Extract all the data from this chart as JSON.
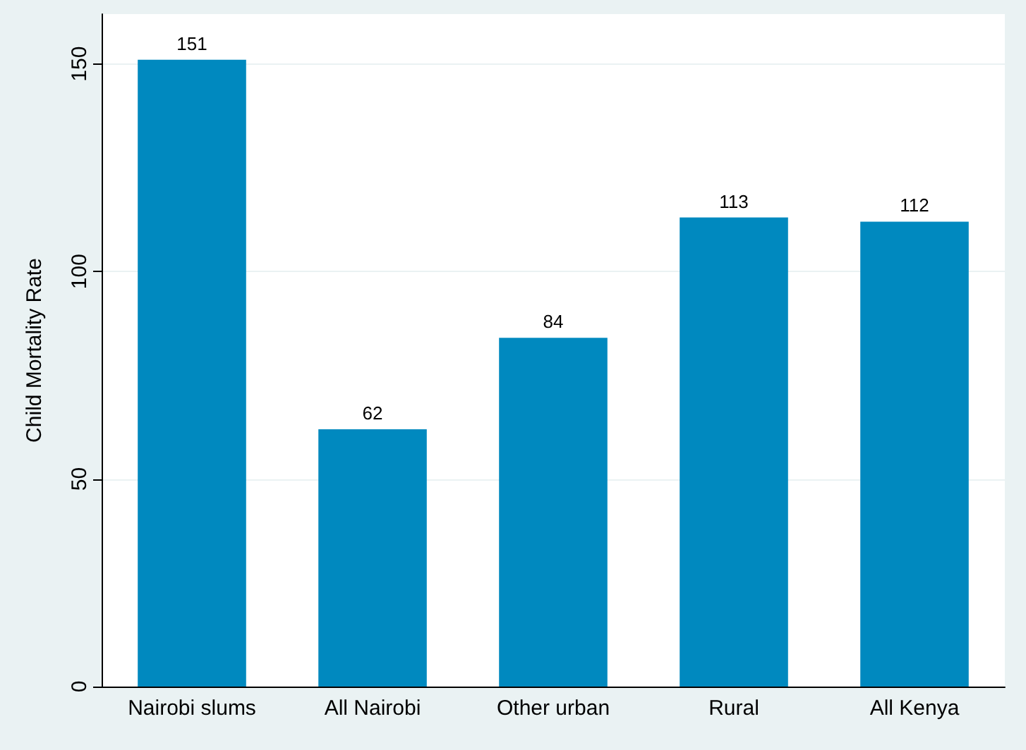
{
  "chart_data": {
    "type": "bar",
    "ylabel": "Child Mortality Rate",
    "categories": [
      "Nairobi slums",
      "All Nairobi",
      "Other urban",
      "Rural",
      "All Kenya"
    ],
    "values": [
      151,
      62,
      84,
      113,
      112
    ],
    "color": "#0089bf",
    "ylim": [
      0,
      162
    ],
    "yticks": [
      0,
      50,
      100,
      150
    ],
    "grid": "y",
    "data_labels": true
  }
}
